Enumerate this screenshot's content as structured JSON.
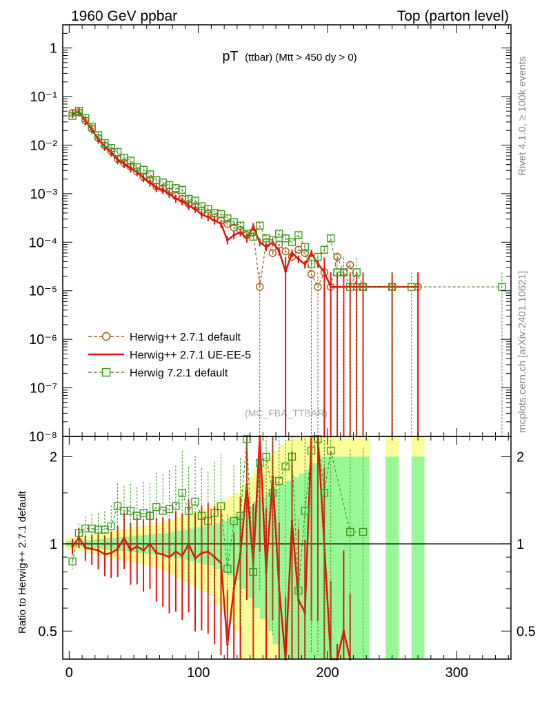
{
  "header": {
    "left": "1960 GeV ppbar",
    "right": "Top (parton level)"
  },
  "side_labels": {
    "rivet": "Rivet 4.1.0, ≥ 100k events",
    "mcplots": "mcplots.cern.ch [arXiv:2401.10621]"
  },
  "colors": {
    "herwig_pp_default": "#a05a14",
    "herwig_pp_ueee5": "#e8100a",
    "herwig_7": "#3c9a1e",
    "band_inner": "#98f898",
    "band_outer": "#fcfc98"
  },
  "chart_data": [
    {
      "type": "line",
      "name": "main",
      "title": "pT",
      "title_suffix": "(ttbar) (Mtt > 450 dy > 0)",
      "watermark": "(MC_FBA_TTBAR)",
      "yscale": "log",
      "xlim": [
        -5,
        342
      ],
      "ylim": [
        1e-08,
        3
      ],
      "x_ticks": [
        0,
        100,
        200,
        300
      ],
      "y_tick_labels": [
        {
          "value": 1,
          "label": "1"
        },
        {
          "value": 0.1,
          "label": "10⁻¹"
        },
        {
          "value": 0.01,
          "label": "10⁻²"
        },
        {
          "value": 0.001,
          "label": "10⁻³"
        },
        {
          "value": 0.0001,
          "label": "10⁻⁴"
        },
        {
          "value": 1e-05,
          "label": "10⁻⁵"
        },
        {
          "value": 1e-06,
          "label": "10⁻⁶"
        },
        {
          "value": 1e-07,
          "label": "10⁻⁷"
        },
        {
          "value": 1e-08,
          "label": "10⁻⁸"
        }
      ],
      "legend_position": "lower-left",
      "series": [
        {
          "name": "Herwig++ 2.7.1 default",
          "style": "dashed-circle",
          "x": [
            2.5,
            7.5,
            12.5,
            17.5,
            22.5,
            27.5,
            32.5,
            37.5,
            42.5,
            47.5,
            52.5,
            57.5,
            62.5,
            67.5,
            72.5,
            77.5,
            82.5,
            87.5,
            92.5,
            97.5,
            102.5,
            107.5,
            112.5,
            117.5,
            122.5,
            127.5,
            132.5,
            137.5,
            142.5,
            147.5,
            152.5,
            157.5,
            162.5,
            167.5,
            172.5,
            177.5,
            182.5,
            187.5,
            192.5,
            197.5,
            202.5,
            207.5,
            212.5,
            217.5,
            222.5,
            227.5,
            250,
            270
          ],
          "y": [
            0.046,
            0.047,
            0.032,
            0.022,
            0.014,
            0.0098,
            0.0075,
            0.0052,
            0.0043,
            0.0036,
            0.0029,
            0.0022,
            0.0019,
            0.0014,
            0.0013,
            0.0011,
            0.0009,
            0.00078,
            0.00061,
            0.00055,
            0.00045,
            0.00039,
            0.00032,
            0.00028,
            0.00024,
            0.0002,
            0.00018,
            0.00014,
            0.00016,
            1.2e-05,
            0.0001,
            6e-05,
            9e-05,
            6.5e-05,
            5e-05,
            7e-05,
            6e-05,
            2.2e-05,
            1.2e-05,
            2.4e-05,
            1.2e-05,
            5e-05,
            2.4e-05,
            3.4e-05,
            1.2e-05,
            1.2e-05,
            1.2e-05,
            1.2e-05
          ]
        },
        {
          "name": "Herwig++ 2.7.1 UE-EE-5",
          "style": "solid",
          "x": [
            2.5,
            7.5,
            12.5,
            17.5,
            22.5,
            27.5,
            32.5,
            37.5,
            42.5,
            47.5,
            52.5,
            57.5,
            62.5,
            67.5,
            72.5,
            77.5,
            82.5,
            87.5,
            92.5,
            97.5,
            102.5,
            107.5,
            112.5,
            117.5,
            122.5,
            127.5,
            132.5,
            137.5,
            142.5,
            147.5,
            152.5,
            157.5,
            162.5,
            167.5,
            172.5,
            177.5,
            182.5,
            187.5,
            192.5,
            197.5,
            202.5,
            207.5,
            212.5,
            217.5,
            222.5,
            227.5,
            250,
            270
          ],
          "y": [
            0.044,
            0.049,
            0.031,
            0.021,
            0.013,
            0.0093,
            0.007,
            0.0049,
            0.0041,
            0.0033,
            0.0028,
            0.0021,
            0.0017,
            0.0013,
            0.0012,
            0.001,
            0.00079,
            0.0007,
            0.00056,
            0.00049,
            0.00037,
            0.00033,
            0.00028,
            0.00024,
            0.00011,
            0.00014,
            0.00016,
            0.00012,
            0.00021,
            0.0001,
            8e-05,
            0.0001,
            6.5e-05,
            2.5e-05,
            6e-05,
            4.5e-05,
            3.5e-05,
            6e-05,
            3.6e-05,
            2.4e-05,
            1.2e-05,
            1.2e-05,
            1.2e-05,
            1.2e-05,
            1.2e-05,
            1.2e-05,
            1.2e-05,
            1.2e-05
          ]
        },
        {
          "name": "Herwig 7.2.1 default",
          "style": "dashed-square",
          "x": [
            2.5,
            7.5,
            12.5,
            17.5,
            22.5,
            27.5,
            32.5,
            37.5,
            42.5,
            47.5,
            52.5,
            57.5,
            62.5,
            67.5,
            72.5,
            77.5,
            82.5,
            87.5,
            92.5,
            97.5,
            102.5,
            107.5,
            112.5,
            117.5,
            122.5,
            127.5,
            132.5,
            137.5,
            142.5,
            147.5,
            152.5,
            157.5,
            162.5,
            167.5,
            172.5,
            177.5,
            182.5,
            187.5,
            192.5,
            197.5,
            202.5,
            207.5,
            212.5,
            217.5,
            222.5,
            227.5,
            250,
            265,
            335
          ],
          "y": [
            0.04,
            0.051,
            0.036,
            0.024,
            0.016,
            0.011,
            0.0087,
            0.0072,
            0.0055,
            0.0048,
            0.0035,
            0.0031,
            0.0025,
            0.0019,
            0.0017,
            0.0015,
            0.0013,
            0.0012,
            0.00078,
            0.00072,
            0.00055,
            0.00048,
            0.0004,
            0.00038,
            0.00031,
            0.00026,
            0.00022,
            0.00015,
            0.00013,
            0.00022,
            0.00012,
            0.00011,
            0.00015,
            0.00012,
            0.0001,
            0.00014,
            8e-05,
            3.5e-05,
            5e-05,
            7e-05,
            0.00012,
            2.4e-05,
            2.4e-05,
            1.2e-05,
            2.4e-05,
            1.2e-05,
            1.2e-05,
            1.2e-05,
            1.2e-05
          ]
        }
      ]
    },
    {
      "type": "line",
      "name": "ratio",
      "ylabel": "Ratio to Herwig++ 2.7.1 default",
      "yscale": "log",
      "xlim": [
        -5,
        342
      ],
      "ylim": [
        0.4,
        2.35
      ],
      "x_ticks": [
        0,
        100,
        200,
        300
      ],
      "y_ticks": [
        0.5,
        1,
        2
      ],
      "y_tick_labels": [
        "0.5",
        "1",
        "2"
      ],
      "reference_line": 1,
      "band_half_width": 5,
      "bands": {
        "x": [
          2.5,
          7.5,
          12.5,
          17.5,
          22.5,
          27.5,
          32.5,
          37.5,
          42.5,
          47.5,
          52.5,
          57.5,
          62.5,
          67.5,
          72.5,
          77.5,
          82.5,
          87.5,
          92.5,
          97.5,
          102.5,
          107.5,
          112.5,
          117.5,
          122.5,
          127.5,
          132.5,
          137.5,
          142.5,
          147.5,
          152.5,
          157.5,
          162.5,
          167.5,
          172.5,
          177.5,
          182.5,
          187.5,
          192.5,
          197.5,
          202.5,
          207.5,
          212.5,
          217.5,
          222.5,
          227.5,
          250,
          270
        ],
        "inner": [
          0.02,
          0.02,
          0.025,
          0.03,
          0.035,
          0.04,
          0.045,
          0.05,
          0.055,
          0.06,
          0.065,
          0.07,
          0.075,
          0.08,
          0.085,
          0.09,
          0.1,
          0.11,
          0.12,
          0.13,
          0.14,
          0.15,
          0.16,
          0.18,
          0.2,
          0.22,
          0.25,
          0.3,
          0.35,
          0.4,
          0.45,
          0.5,
          0.55,
          0.6,
          0.65,
          0.7,
          0.75,
          0.8,
          0.9,
          1,
          1,
          1,
          1,
          1,
          1,
          1,
          1,
          1
        ],
        "outer": [
          0.05,
          0.05,
          0.06,
          0.07,
          0.08,
          0.09,
          0.1,
          0.11,
          0.12,
          0.13,
          0.14,
          0.15,
          0.16,
          0.17,
          0.18,
          0.2,
          0.22,
          0.24,
          0.26,
          0.28,
          0.3,
          0.32,
          0.34,
          0.38,
          0.42,
          0.46,
          0.5,
          0.6,
          0.7,
          0.8,
          0.9,
          1,
          1.1,
          1.2,
          1.3,
          1.4,
          1.5,
          1.6,
          1.8,
          2,
          2,
          2,
          2,
          2,
          2,
          2,
          2,
          2
        ]
      },
      "series": [
        {
          "name": "Herwig++ 2.7.1 UE-EE-5",
          "style": "solid",
          "x": [
            2.5,
            7.5,
            12.5,
            17.5,
            22.5,
            27.5,
            32.5,
            37.5,
            42.5,
            47.5,
            52.5,
            57.5,
            62.5,
            67.5,
            72.5,
            77.5,
            82.5,
            87.5,
            92.5,
            97.5,
            102.5,
            107.5,
            112.5,
            117.5,
            122.5,
            127.5,
            132.5,
            137.5,
            142.5,
            147.5,
            152.5,
            157.5,
            162.5,
            167.5,
            172.5,
            177.5,
            182.5,
            187.5,
            192.5,
            197.5,
            202.5,
            207.5,
            212.5,
            217.5
          ],
          "y": [
            0.98,
            1.05,
            0.97,
            0.96,
            0.95,
            0.92,
            0.93,
            0.96,
            1.05,
            0.95,
            0.98,
            0.95,
            1.0,
            0.93,
            0.92,
            0.9,
            0.94,
            0.91,
            1.0,
            0.89,
            0.93,
            0.94,
            0.9,
            0.86,
            0.45,
            0.7,
            0.92,
            1.6,
            0.85,
            2.6,
            0.8,
            1.7,
            0.7,
            0.38,
            1.2,
            0.64,
            0.58,
            2.7,
            3.0,
            1.0,
            0.4,
            0.24,
            0.5,
            0.35
          ]
        },
        {
          "name": "Herwig 7.2.1 default",
          "style": "dashed-square",
          "x": [
            2.5,
            7.5,
            12.5,
            17.5,
            22.5,
            27.5,
            32.5,
            37.5,
            42.5,
            47.5,
            52.5,
            57.5,
            62.5,
            67.5,
            72.5,
            77.5,
            82.5,
            87.5,
            92.5,
            97.5,
            102.5,
            107.5,
            112.5,
            117.5,
            122.5,
            127.5,
            132.5,
            137.5,
            142.5,
            147.5,
            152.5,
            157.5,
            162.5,
            167.5,
            172.5,
            177.5,
            182.5,
            187.5,
            192.5,
            197.5,
            202.5,
            217.5,
            227.5
          ],
          "y": [
            0.87,
            1.09,
            1.13,
            1.13,
            1.12,
            1.12,
            1.15,
            1.35,
            1.3,
            1.3,
            1.25,
            1.28,
            1.25,
            1.34,
            1.3,
            1.32,
            1.35,
            1.5,
            1.3,
            1.4,
            1.25,
            1.2,
            1.28,
            1.35,
            0.82,
            1.2,
            1.25,
            2.3,
            0.8,
            1.9,
            2.0,
            1.5,
            1.65,
            1.85,
            2.0,
            0.69,
            1.3,
            2.1,
            2.3,
            1.5,
            2.1,
            1.1,
            1.1
          ]
        }
      ]
    }
  ]
}
